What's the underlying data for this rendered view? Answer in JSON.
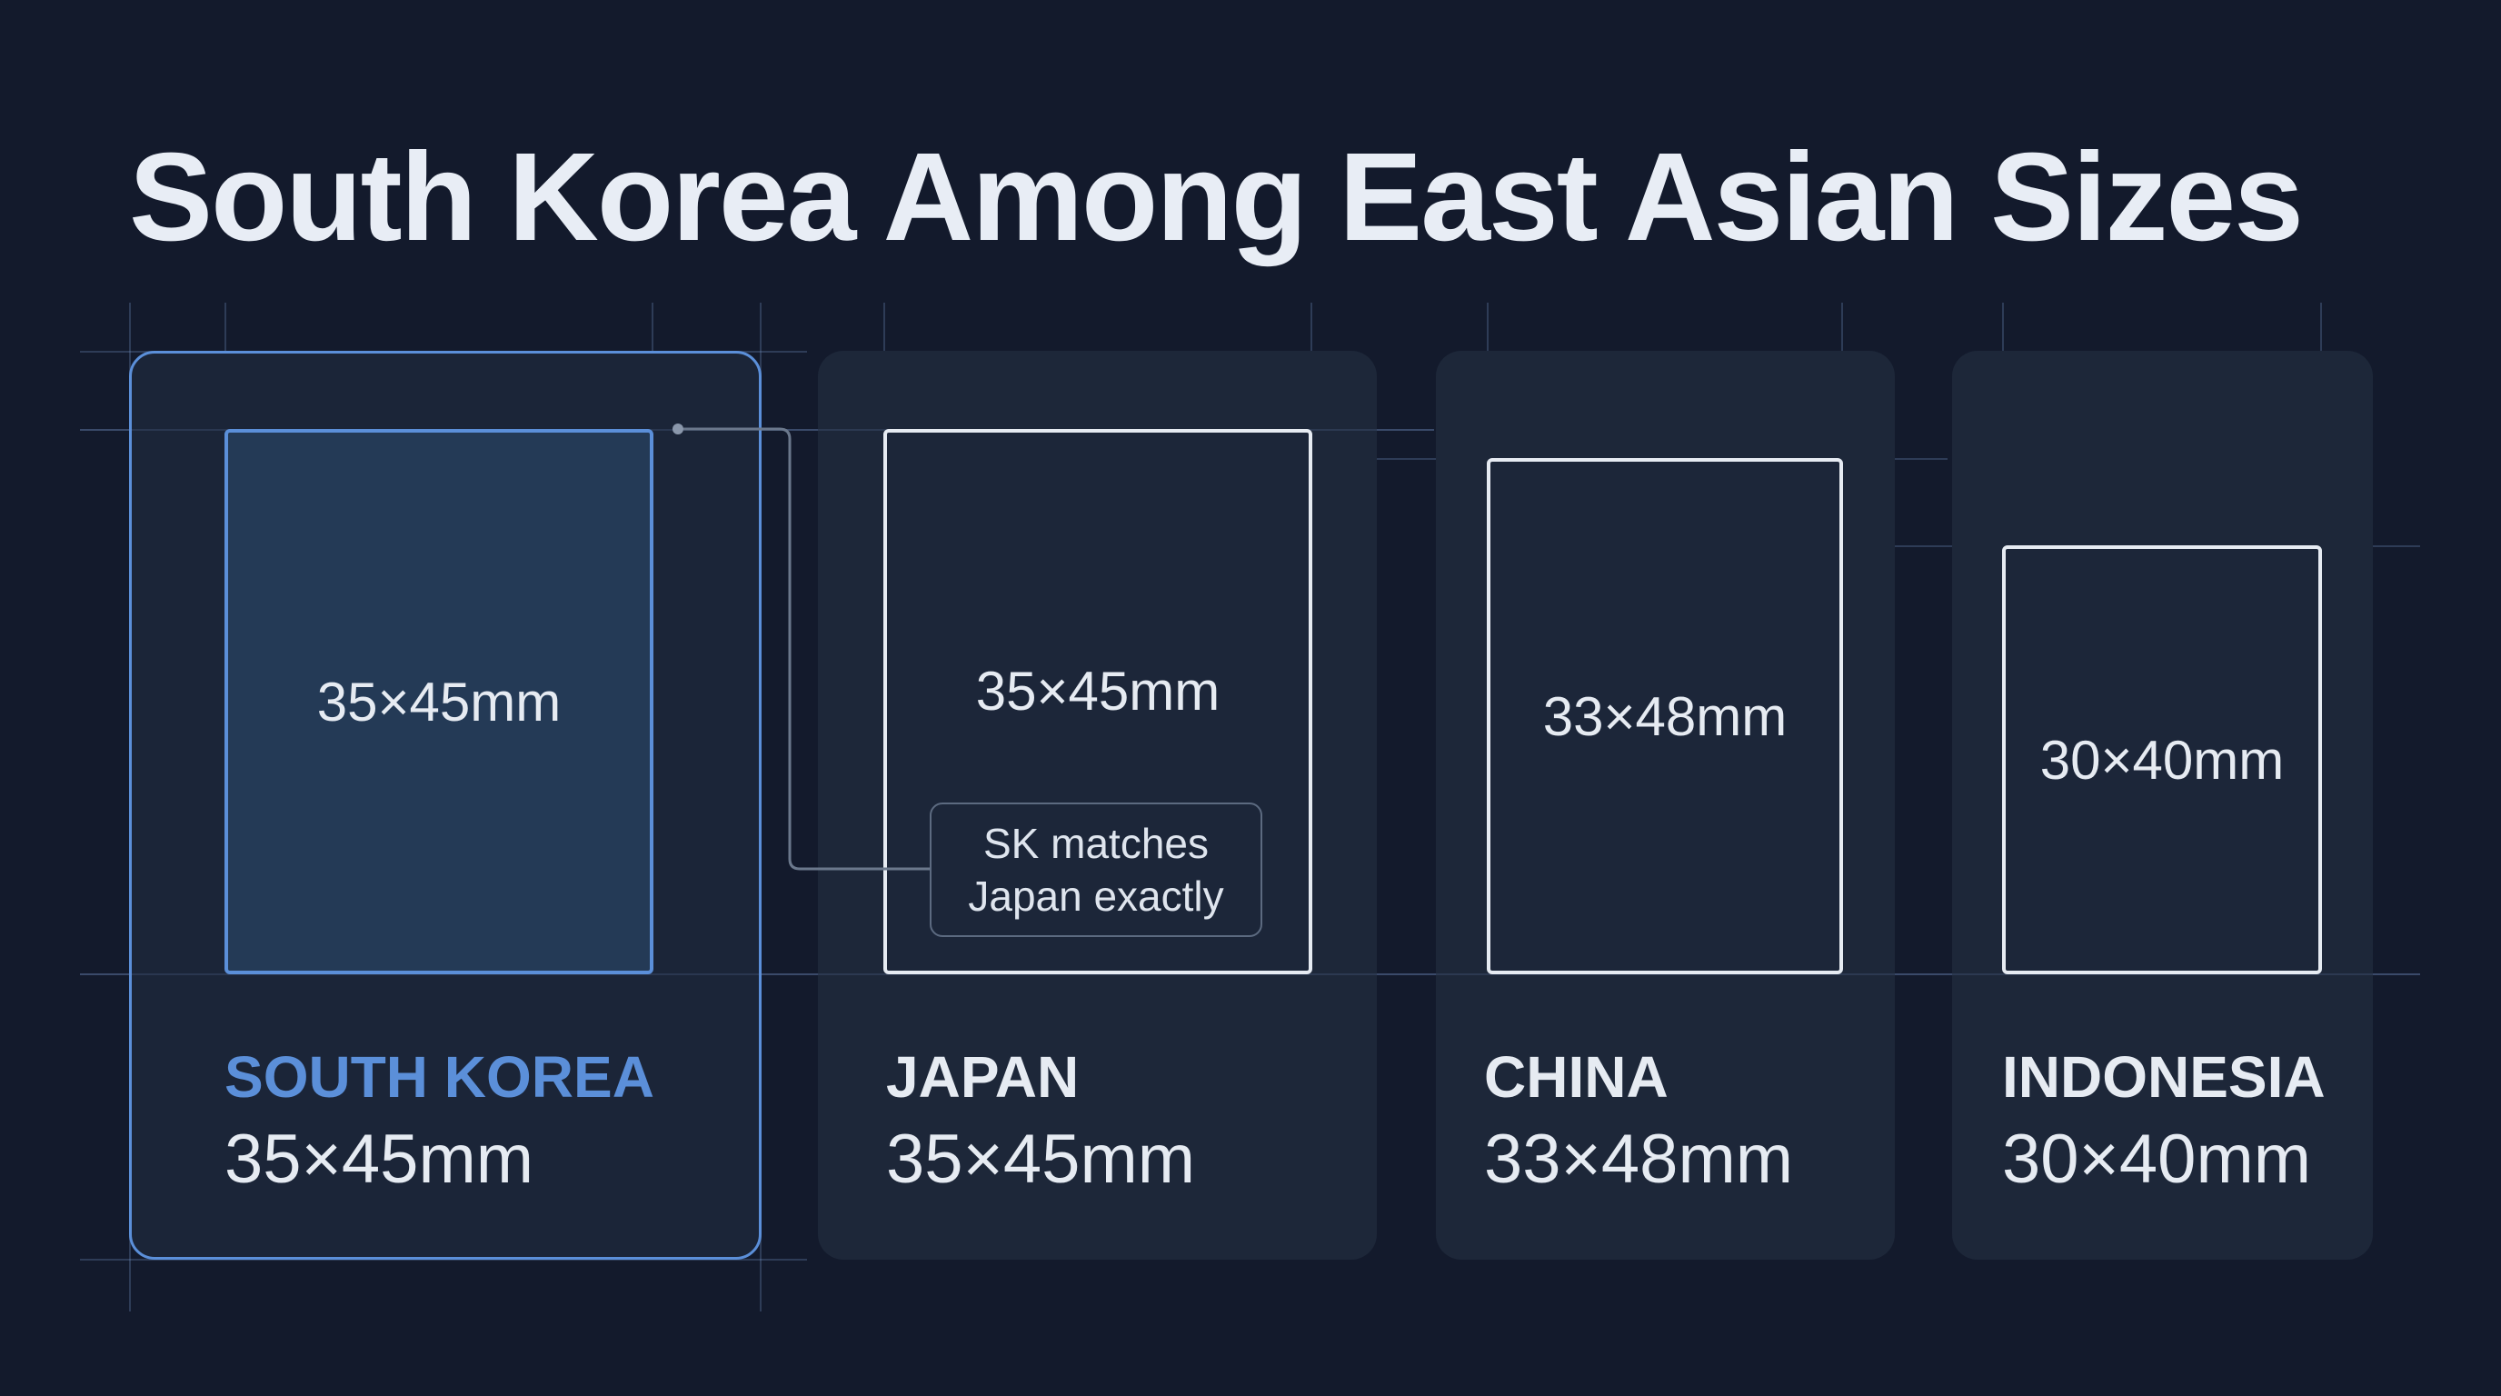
{
  "title": "South Korea Among East Asian Sizes",
  "colors": {
    "background": "#131a2c",
    "card": "#1d2739",
    "highlight": "#5b8fd9",
    "text": "#e6ebf2"
  },
  "countries": [
    {
      "name": "SOUTH KOREA",
      "size": "35×45mm",
      "photo_label": "35×45mm",
      "highlighted": true
    },
    {
      "name": "JAPAN",
      "size": "35×45mm",
      "photo_label": "35×45mm",
      "highlighted": false
    },
    {
      "name": "CHINA",
      "size": "33×48mm",
      "photo_label": "33×48mm",
      "highlighted": false
    },
    {
      "name": "INDONESIA",
      "size": "30×40mm",
      "photo_label": "30×40mm",
      "highlighted": false
    }
  ],
  "callout": {
    "line1": "SK matches",
    "line2": "Japan exactly"
  }
}
